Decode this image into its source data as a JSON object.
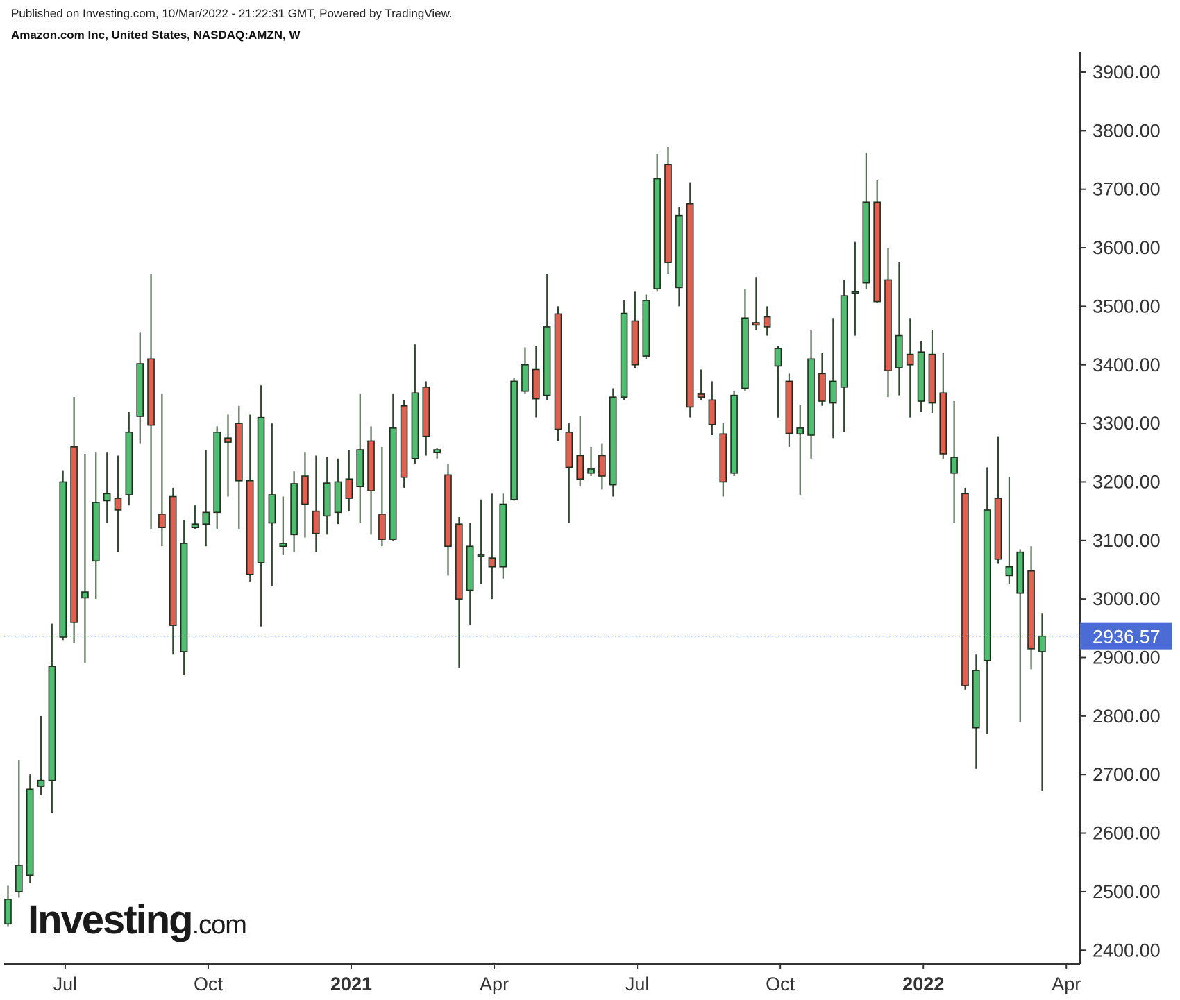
{
  "header": {
    "published": "Published on Investing.com, 10/Mar/2022 - 21:22:31 GMT, Powered by TradingView.",
    "instrument": "Amazon.com Inc, United States, NASDAQ:AMZN, W"
  },
  "logo": {
    "brand": "Investing",
    "tld": ".com"
  },
  "colors": {
    "up": "#4fbe70",
    "down": "#e06152",
    "outline": "#1f2d1f",
    "wick": "#2e4a2e",
    "price_line": "#4a6cd4",
    "price_label_bg": "#4a6cd4",
    "axis": "#333333"
  },
  "chart_data": {
    "type": "candlestick",
    "interval": "W",
    "ylim": [
      2370,
      3920
    ],
    "y_ticks": [
      2400,
      2500,
      2600,
      2700,
      2800,
      2900,
      3000,
      3100,
      3200,
      3300,
      3400,
      3500,
      3600,
      3700,
      3800,
      3900
    ],
    "y_tick_labels": [
      "2400.00",
      "2500.00",
      "2600.00",
      "2700.00",
      "2800.00",
      "2900.00",
      "3000.00",
      "3100.00",
      "3200.00",
      "3300.00",
      "3400.00",
      "3500.00",
      "3600.00",
      "3700.00",
      "3800.00",
      "3900.00"
    ],
    "x_ticks": [
      {
        "label": "Jul",
        "bar": 5.2,
        "bold": false
      },
      {
        "label": "Oct",
        "bar": 18.2,
        "bold": false
      },
      {
        "label": "2021",
        "bar": 31.2,
        "bold": true
      },
      {
        "label": "Apr",
        "bar": 44.2,
        "bold": false
      },
      {
        "label": "Jul",
        "bar": 57.2,
        "bold": false
      },
      {
        "label": "Oct",
        "bar": 70.2,
        "bold": false
      },
      {
        "label": "2022",
        "bar": 83.2,
        "bold": true
      },
      {
        "label": "Apr",
        "bar": 96.2,
        "bold": false
      }
    ],
    "last_price": 2936.57,
    "last_price_label": "2936.57",
    "candles": [
      [
        2445,
        2487,
        2440,
        2510
      ],
      [
        2500,
        2545,
        2490,
        2725
      ],
      [
        2528,
        2675,
        2515,
        2700
      ],
      [
        2680,
        2690,
        2665,
        2800
      ],
      [
        2690,
        2885,
        2635,
        2958
      ],
      [
        2935,
        3200,
        2930,
        3220
      ],
      [
        3260,
        2960,
        2925,
        3345
      ],
      [
        3002,
        3012,
        2890,
        3248
      ],
      [
        3065,
        3165,
        3000,
        3250
      ],
      [
        3168,
        3180,
        3130,
        3250
      ],
      [
        3172,
        3152,
        3080,
        3245
      ],
      [
        3178,
        3285,
        3160,
        3320
      ],
      [
        3312,
        3402,
        3265,
        3455
      ],
      [
        3410,
        3297,
        3120,
        3555
      ],
      [
        3145,
        3122,
        3090,
        3350
      ],
      [
        3175,
        2955,
        2905,
        3190
      ],
      [
        2910,
        3095,
        2870,
        3135
      ],
      [
        3122,
        3128,
        3120,
        3160
      ],
      [
        3128,
        3148,
        3090,
        3255
      ],
      [
        3148,
        3285,
        3120,
        3295
      ],
      [
        3275,
        3268,
        3175,
        3315
      ],
      [
        3300,
        3202,
        3120,
        3330
      ],
      [
        3202,
        3042,
        3030,
        3315
      ],
      [
        3062,
        3310,
        2953,
        3365
      ],
      [
        3130,
        3178,
        3022,
        3300
      ],
      [
        3090,
        3095,
        3075,
        3175
      ],
      [
        3110,
        3197,
        3080,
        3218
      ],
      [
        3210,
        3162,
        3105,
        3250
      ],
      [
        3150,
        3112,
        3080,
        3245
      ],
      [
        3142,
        3198,
        3110,
        3242
      ],
      [
        3148,
        3200,
        3128,
        3240
      ],
      [
        3205,
        3172,
        3150,
        3255
      ],
      [
        3192,
        3255,
        3130,
        3350
      ],
      [
        3270,
        3185,
        3110,
        3295
      ],
      [
        3145,
        3102,
        3090,
        3260
      ],
      [
        3102,
        3292,
        3100,
        3350
      ],
      [
        3330,
        3208,
        3190,
        3340
      ],
      [
        3240,
        3352,
        3230,
        3435
      ],
      [
        3362,
        3278,
        3245,
        3372
      ],
      [
        3250,
        3255,
        3240,
        3258
      ],
      [
        3212,
        3090,
        3040,
        3230
      ],
      [
        3128,
        3000,
        2883,
        3140
      ],
      [
        3015,
        3090,
        2955,
        3130
      ],
      [
        3075,
        3075,
        3025,
        3170
      ],
      [
        3070,
        3055,
        3000,
        3180
      ],
      [
        3055,
        3162,
        3035,
        3180
      ],
      [
        3170,
        3372,
        3168,
        3378
      ],
      [
        3355,
        3400,
        3350,
        3430
      ],
      [
        3392,
        3342,
        3310,
        3432
      ],
      [
        3348,
        3465,
        3340,
        3555
      ],
      [
        3487,
        3290,
        3270,
        3500
      ],
      [
        3285,
        3225,
        3130,
        3300
      ],
      [
        3245,
        3205,
        3192,
        3312
      ],
      [
        3215,
        3222,
        3210,
        3260
      ],
      [
        3245,
        3210,
        3187,
        3265
      ],
      [
        3195,
        3345,
        3175,
        3360
      ],
      [
        3345,
        3488,
        3340,
        3510
      ],
      [
        3475,
        3400,
        3395,
        3525
      ],
      [
        3415,
        3510,
        3410,
        3520
      ],
      [
        3530,
        3718,
        3525,
        3760
      ],
      [
        3742,
        3575,
        3555,
        3772
      ],
      [
        3532,
        3655,
        3500,
        3670
      ],
      [
        3675,
        3328,
        3310,
        3712
      ],
      [
        3350,
        3345,
        3340,
        3392
      ],
      [
        3340,
        3298,
        3280,
        3372
      ],
      [
        3282,
        3200,
        3175,
        3300
      ],
      [
        3215,
        3348,
        3210,
        3355
      ],
      [
        3360,
        3480,
        3355,
        3530
      ],
      [
        3472,
        3468,
        3460,
        3550
      ],
      [
        3482,
        3465,
        3450,
        3500
      ],
      [
        3398,
        3428,
        3310,
        3432
      ],
      [
        3372,
        3283,
        3260,
        3385
      ],
      [
        3282,
        3292,
        3178,
        3332
      ],
      [
        3280,
        3410,
        3240,
        3460
      ],
      [
        3385,
        3338,
        3330,
        3420
      ],
      [
        3335,
        3372,
        3275,
        3480
      ],
      [
        3362,
        3518,
        3285,
        3545
      ],
      [
        3525,
        3525,
        3450,
        3610
      ],
      [
        3540,
        3678,
        3530,
        3762
      ],
      [
        3678,
        3508,
        3505,
        3715
      ],
      [
        3545,
        3390,
        3345,
        3600
      ],
      [
        3395,
        3450,
        3348,
        3575
      ],
      [
        3418,
        3400,
        3310,
        3480
      ],
      [
        3338,
        3422,
        3320,
        3440
      ],
      [
        3418,
        3335,
        3318,
        3460
      ],
      [
        3352,
        3248,
        3240,
        3420
      ],
      [
        3215,
        3242,
        3130,
        3338
      ],
      [
        3180,
        2852,
        2845,
        3190
      ],
      [
        2780,
        2878,
        2710,
        2905
      ],
      [
        2895,
        3152,
        2770,
        3225
      ],
      [
        3172,
        3068,
        3060,
        3278
      ],
      [
        3040,
        3055,
        3025,
        3208
      ],
      [
        3010,
        3080,
        2790,
        3085
      ],
      [
        3048,
        2915,
        2880,
        3090
      ],
      [
        2910,
        2936.57,
        2672,
        2975
      ]
    ]
  }
}
